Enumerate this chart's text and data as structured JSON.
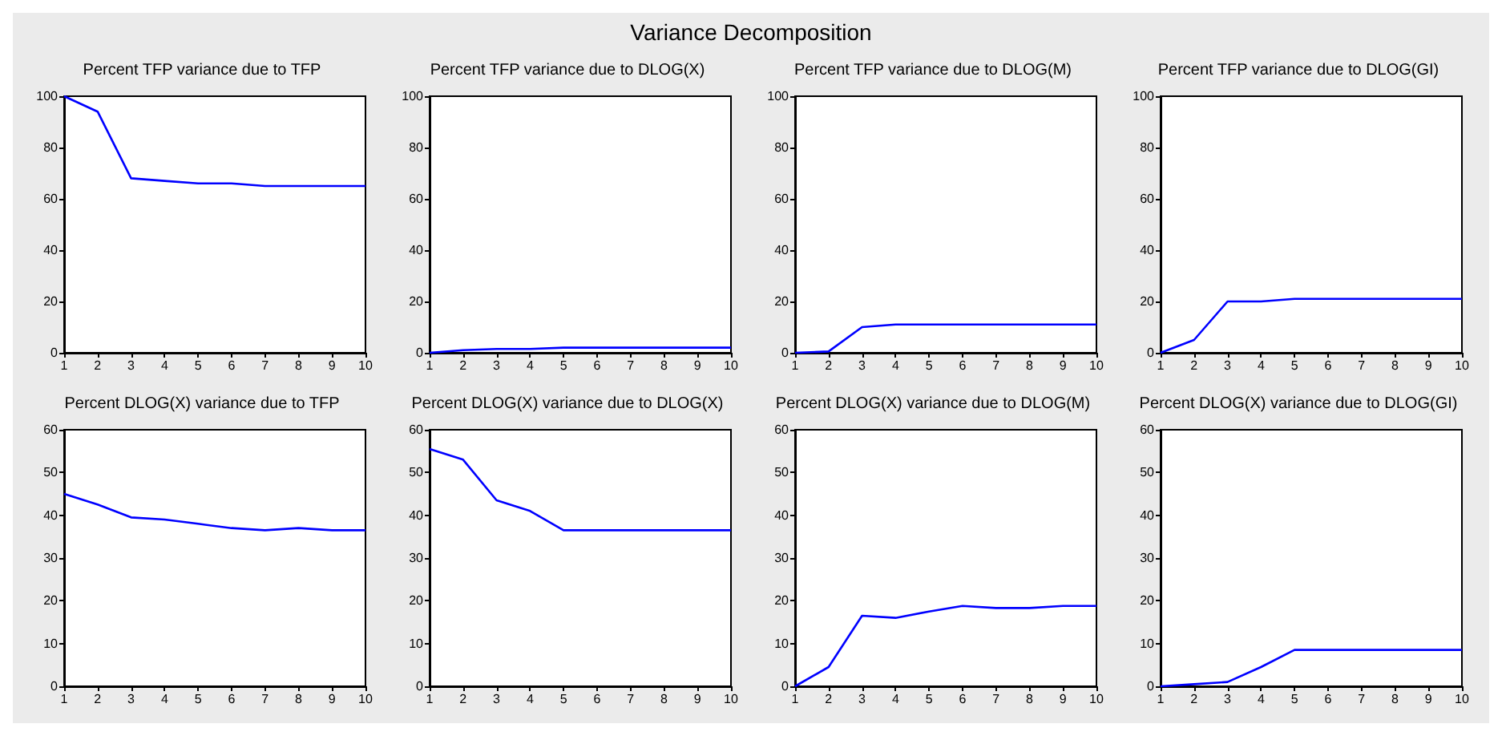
{
  "chart_data": [
    {
      "type": "line",
      "title": "Percent TFP variance due to TFP",
      "annotations": [
        "Variance Decomposition"
      ],
      "x": [
        1,
        2,
        3,
        4,
        5,
        6,
        7,
        8,
        9,
        10
      ],
      "xlim": [
        1,
        10
      ],
      "xticks": [
        1,
        2,
        3,
        4,
        5,
        6,
        7,
        8,
        9,
        10
      ],
      "ylim": [
        0,
        100
      ],
      "yticks": [
        0,
        20,
        40,
        60,
        80,
        100
      ],
      "series": [
        {
          "color": "#0000ff",
          "values": [
            100,
            94,
            68,
            67,
            66,
            66,
            65,
            65,
            65,
            65
          ]
        }
      ]
    },
    {
      "type": "line",
      "title": "Percent TFP variance due to DLOG(X)",
      "x": [
        1,
        2,
        3,
        4,
        5,
        6,
        7,
        8,
        9,
        10
      ],
      "xlim": [
        1,
        10
      ],
      "xticks": [
        1,
        2,
        3,
        4,
        5,
        6,
        7,
        8,
        9,
        10
      ],
      "ylim": [
        0,
        100
      ],
      "yticks": [
        0,
        20,
        40,
        60,
        80,
        100
      ],
      "series": [
        {
          "color": "#0000ff",
          "values": [
            0,
            1,
            1.5,
            1.5,
            2,
            2,
            2,
            2,
            2,
            2
          ]
        }
      ]
    },
    {
      "type": "line",
      "title": "Percent TFP variance due to DLOG(M)",
      "x": [
        1,
        2,
        3,
        4,
        5,
        6,
        7,
        8,
        9,
        10
      ],
      "xlim": [
        1,
        10
      ],
      "xticks": [
        1,
        2,
        3,
        4,
        5,
        6,
        7,
        8,
        9,
        10
      ],
      "ylim": [
        0,
        100
      ],
      "yticks": [
        0,
        20,
        40,
        60,
        80,
        100
      ],
      "series": [
        {
          "color": "#0000ff",
          "values": [
            0,
            0.5,
            10,
            11,
            11,
            11,
            11,
            11,
            11,
            11
          ]
        }
      ]
    },
    {
      "type": "line",
      "title": "Percent TFP variance due to DLOG(GI)",
      "x": [
        1,
        2,
        3,
        4,
        5,
        6,
        7,
        8,
        9,
        10
      ],
      "xlim": [
        1,
        10
      ],
      "xticks": [
        1,
        2,
        3,
        4,
        5,
        6,
        7,
        8,
        9,
        10
      ],
      "ylim": [
        0,
        100
      ],
      "yticks": [
        0,
        20,
        40,
        60,
        80,
        100
      ],
      "series": [
        {
          "color": "#0000ff",
          "values": [
            0,
            5,
            20,
            20,
            21,
            21,
            21,
            21,
            21,
            21
          ]
        }
      ]
    },
    {
      "type": "line",
      "title": "Percent DLOG(X) variance due to TFP",
      "x": [
        1,
        2,
        3,
        4,
        5,
        6,
        7,
        8,
        9,
        10
      ],
      "xlim": [
        1,
        10
      ],
      "xticks": [
        1,
        2,
        3,
        4,
        5,
        6,
        7,
        8,
        9,
        10
      ],
      "ylim": [
        0,
        60
      ],
      "yticks": [
        0,
        10,
        20,
        30,
        40,
        50,
        60
      ],
      "series": [
        {
          "color": "#0000ff",
          "values": [
            45,
            42.5,
            39.5,
            39,
            38,
            37,
            36.5,
            37,
            36.5,
            36.5
          ]
        }
      ]
    },
    {
      "type": "line",
      "title": "Percent DLOG(X) variance due to DLOG(X)",
      "x": [
        1,
        2,
        3,
        4,
        5,
        6,
        7,
        8,
        9,
        10
      ],
      "xlim": [
        1,
        10
      ],
      "xticks": [
        1,
        2,
        3,
        4,
        5,
        6,
        7,
        8,
        9,
        10
      ],
      "ylim": [
        0,
        60
      ],
      "yticks": [
        0,
        10,
        20,
        30,
        40,
        50,
        60
      ],
      "series": [
        {
          "color": "#0000ff",
          "values": [
            55.5,
            53,
            43.5,
            41,
            36.5,
            36.5,
            36.5,
            36.5,
            36.5,
            36.5
          ]
        }
      ]
    },
    {
      "type": "line",
      "title": "Percent DLOG(X) variance due to DLOG(M)",
      "x": [
        1,
        2,
        3,
        4,
        5,
        6,
        7,
        8,
        9,
        10
      ],
      "xlim": [
        1,
        10
      ],
      "xticks": [
        1,
        2,
        3,
        4,
        5,
        6,
        7,
        8,
        9,
        10
      ],
      "ylim": [
        0,
        60
      ],
      "yticks": [
        0,
        10,
        20,
        30,
        40,
        50,
        60
      ],
      "series": [
        {
          "color": "#0000ff",
          "values": [
            0,
            4.5,
            16.5,
            16,
            17.5,
            18.8,
            18.3,
            18.3,
            18.8,
            18.8
          ]
        }
      ]
    },
    {
      "type": "line",
      "title": "Percent DLOG(X) variance due to DLOG(GI)",
      "x": [
        1,
        2,
        3,
        4,
        5,
        6,
        7,
        8,
        9,
        10
      ],
      "xlim": [
        1,
        10
      ],
      "xticks": [
        1,
        2,
        3,
        4,
        5,
        6,
        7,
        8,
        9,
        10
      ],
      "ylim": [
        0,
        60
      ],
      "yticks": [
        0,
        10,
        20,
        30,
        40,
        50,
        60
      ],
      "series": [
        {
          "color": "#0000ff",
          "values": [
            0,
            0.5,
            1,
            4.5,
            8.5,
            8.5,
            8.5,
            8.5,
            8.5,
            8.5
          ]
        }
      ]
    }
  ]
}
